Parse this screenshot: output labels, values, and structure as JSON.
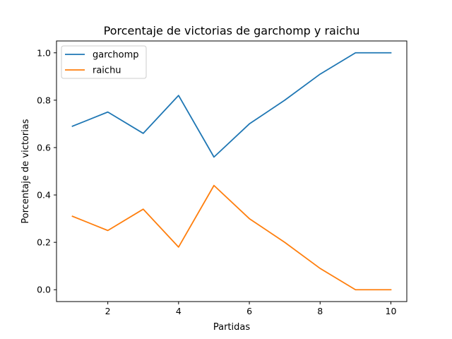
{
  "chart_data": {
    "type": "line",
    "title": "Porcentaje de victorias de garchomp y raichu",
    "xlabel": "Partidas",
    "ylabel": "Porcentaje de victorias",
    "xlim": [
      0.55,
      10.45
    ],
    "ylim": [
      -0.05,
      1.05
    ],
    "xticks": [
      2,
      4,
      6,
      8,
      10
    ],
    "xtick_labels": [
      "2",
      "4",
      "6",
      "8",
      "10"
    ],
    "yticks": [
      0.0,
      0.2,
      0.4,
      0.6,
      0.8,
      1.0
    ],
    "ytick_labels": [
      "0.0",
      "0.2",
      "0.4",
      "0.6",
      "0.8",
      "1.0"
    ],
    "grid": false,
    "legend_position": "top-left",
    "x": [
      1,
      2,
      3,
      4,
      5,
      6,
      7,
      8,
      9,
      10
    ],
    "series": [
      {
        "name": "garchomp",
        "color": "#1f77b4",
        "values": [
          0.69,
          0.75,
          0.66,
          0.82,
          0.56,
          0.7,
          0.8,
          0.91,
          1.0,
          1.0
        ]
      },
      {
        "name": "raichu",
        "color": "#ff7f0e",
        "values": [
          0.31,
          0.25,
          0.34,
          0.18,
          0.44,
          0.3,
          0.2,
          0.09,
          0.0,
          0.0
        ]
      }
    ]
  }
}
